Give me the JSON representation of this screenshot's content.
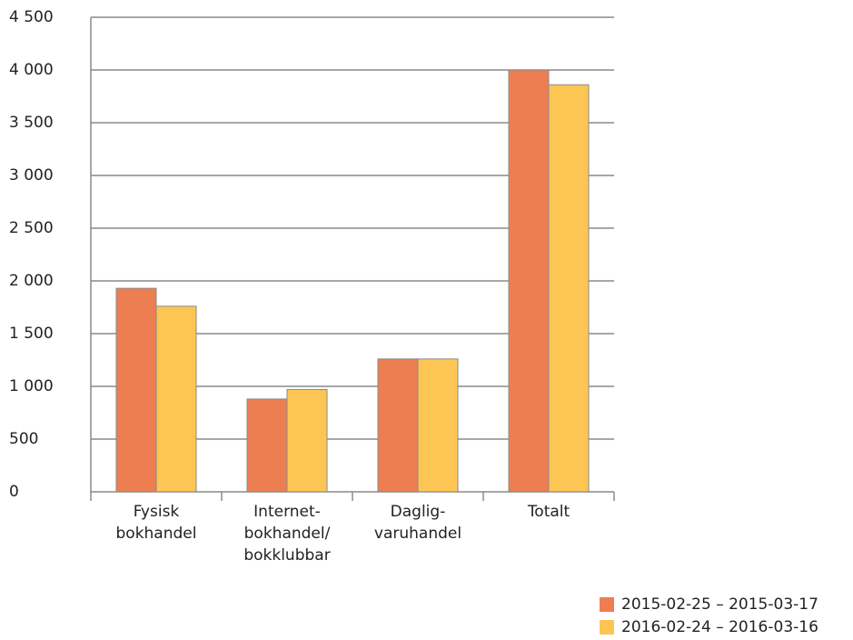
{
  "chart_data": {
    "type": "bar",
    "categories": [
      "Fysisk\nbokhandel",
      "Internet-\nbokhandel/\nbokklubbar",
      "Daglig-\nvaruhandel",
      "Totalt"
    ],
    "series": [
      {
        "name": "2015-02-25 – 2015-03-17",
        "color": "#ed7e52",
        "values": [
          1930,
          880,
          1260,
          4000
        ]
      },
      {
        "name": "2016-02-24 – 2016-03-16",
        "color": "#fdc553",
        "values": [
          1760,
          970,
          1260,
          3860
        ]
      }
    ],
    "ylim": [
      0,
      4500
    ],
    "yticks": [
      0,
      500,
      {
        "value": 1000,
        "label": "1 000"
      },
      {
        "value": 1500,
        "label": "1 500"
      },
      {
        "value": 2000,
        "label": "2 000"
      },
      {
        "value": 2500,
        "label": "2 500"
      },
      {
        "value": 3000,
        "label": "3 000"
      },
      {
        "value": 3500,
        "label": "3 500"
      },
      {
        "value": 4000,
        "label": "4 000"
      },
      {
        "value": 4500,
        "label": "4 500"
      }
    ],
    "grid": true,
    "legend": "bottom-right"
  }
}
